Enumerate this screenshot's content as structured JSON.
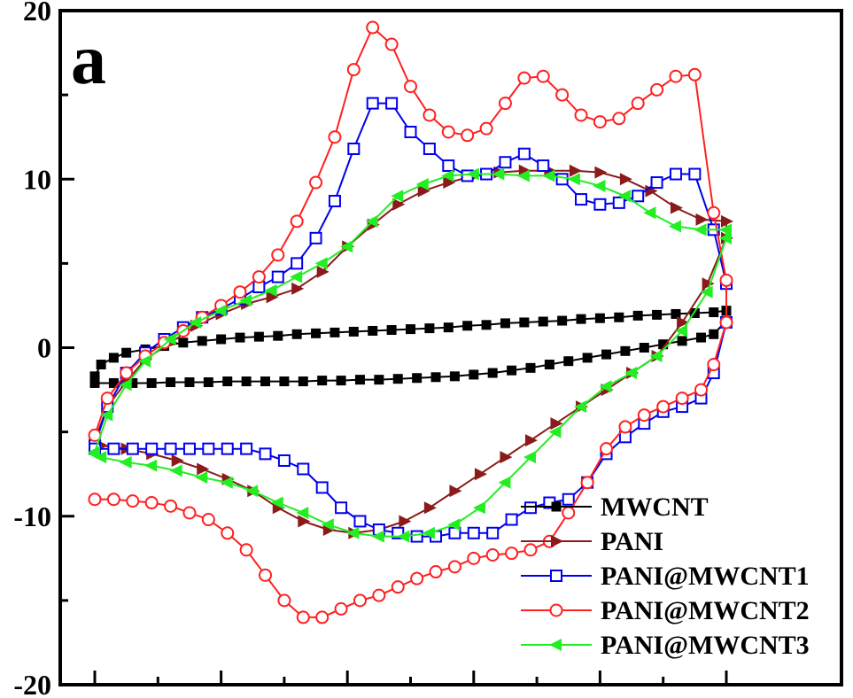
{
  "chart_data": {
    "type": "line",
    "title": "",
    "panel_label": "a",
    "xlabel": "",
    "ylabel": "",
    "xlim": [
      -0.2,
      0.8
    ],
    "ylim": [
      -20,
      20
    ],
    "y_ticks": [
      {
        "value": 20,
        "label": "20"
      },
      {
        "value": 10,
        "label": "10"
      },
      {
        "value": 0,
        "label": "0"
      },
      {
        "value": -10,
        "label": "-10"
      },
      {
        "value": -20,
        "label": "-20"
      }
    ],
    "x_ticks_major": [
      -0.2,
      0.0,
      0.2,
      0.4,
      0.6,
      0.8
    ],
    "x_ticks_minor": [
      -0.1,
      0.1,
      0.3,
      0.5,
      0.7
    ],
    "grid": false,
    "legend_position": "bottom-right",
    "series": [
      {
        "name": "MWCNT",
        "color": "#000000",
        "marker": "square-filled",
        "x": [
          -0.2,
          -0.19,
          -0.17,
          -0.15,
          -0.12,
          -0.09,
          -0.06,
          -0.03,
          0.0,
          0.03,
          0.06,
          0.09,
          0.12,
          0.15,
          0.18,
          0.21,
          0.24,
          0.27,
          0.3,
          0.33,
          0.36,
          0.39,
          0.42,
          0.45,
          0.48,
          0.51,
          0.54,
          0.57,
          0.6,
          0.63,
          0.66,
          0.69,
          0.72,
          0.75,
          0.78,
          0.8,
          0.8,
          0.78,
          0.76,
          0.73,
          0.7,
          0.67,
          0.64,
          0.61,
          0.58,
          0.55,
          0.52,
          0.49,
          0.46,
          0.43,
          0.4,
          0.37,
          0.34,
          0.31,
          0.28,
          0.25,
          0.22,
          0.19,
          0.16,
          0.13,
          0.1,
          0.07,
          0.04,
          0.01,
          -0.02,
          -0.05,
          -0.08,
          -0.11,
          -0.14,
          -0.17,
          -0.2
        ],
        "y": [
          -1.7,
          -1.0,
          -0.6,
          -0.3,
          -0.1,
          0.1,
          0.3,
          0.4,
          0.5,
          0.6,
          0.65,
          0.7,
          0.8,
          0.85,
          0.9,
          0.95,
          1.0,
          1.05,
          1.1,
          1.15,
          1.2,
          1.3,
          1.35,
          1.45,
          1.5,
          1.55,
          1.6,
          1.7,
          1.75,
          1.8,
          1.9,
          1.95,
          2.0,
          2.05,
          2.1,
          2.2,
          1.6,
          0.8,
          0.6,
          0.4,
          0.2,
          0.0,
          -0.2,
          -0.4,
          -0.6,
          -0.8,
          -1.0,
          -1.2,
          -1.35,
          -1.5,
          -1.6,
          -1.7,
          -1.75,
          -1.8,
          -1.85,
          -1.9,
          -1.9,
          -1.95,
          -1.95,
          -2.0,
          -2.0,
          -2.0,
          -2.0,
          -2.0,
          -2.05,
          -2.05,
          -2.05,
          -2.1,
          -2.1,
          -2.1,
          -2.1
        ]
      },
      {
        "name": "PANI",
        "color": "#8b1a1a",
        "marker": "triangle-right-filled",
        "x": [
          -0.2,
          -0.18,
          -0.15,
          -0.12,
          -0.08,
          -0.04,
          0.0,
          0.04,
          0.08,
          0.12,
          0.16,
          0.2,
          0.24,
          0.28,
          0.32,
          0.36,
          0.4,
          0.44,
          0.48,
          0.52,
          0.56,
          0.6,
          0.64,
          0.68,
          0.72,
          0.76,
          0.8,
          0.8,
          0.77,
          0.73,
          0.69,
          0.65,
          0.61,
          0.57,
          0.53,
          0.49,
          0.45,
          0.41,
          0.37,
          0.33,
          0.29,
          0.25,
          0.21,
          0.17,
          0.13,
          0.09,
          0.05,
          0.01,
          -0.03,
          -0.07,
          -0.11,
          -0.15,
          -0.19,
          -0.2
        ],
        "y": [
          -5.5,
          -3.5,
          -2.0,
          -0.7,
          0.3,
          1.3,
          2.0,
          2.6,
          3.0,
          3.5,
          4.5,
          6.0,
          7.3,
          8.5,
          9.3,
          9.8,
          10.2,
          10.4,
          10.5,
          10.5,
          10.5,
          10.4,
          10.0,
          9.3,
          8.3,
          7.6,
          7.5,
          6.5,
          3.8,
          1.5,
          -0.5,
          -1.5,
          -2.5,
          -3.5,
          -4.5,
          -5.5,
          -6.5,
          -7.5,
          -8.5,
          -9.5,
          -10.3,
          -10.8,
          -11.0,
          -10.8,
          -10.3,
          -9.5,
          -8.5,
          -7.8,
          -7.2,
          -6.7,
          -6.3,
          -6.0,
          -5.8,
          -5.7
        ]
      },
      {
        "name": "PANI@MWCNT1",
        "color": "#0000ee",
        "marker": "square-open",
        "x": [
          -0.2,
          -0.18,
          -0.15,
          -0.12,
          -0.09,
          -0.06,
          -0.03,
          0.0,
          0.03,
          0.06,
          0.09,
          0.12,
          0.15,
          0.18,
          0.21,
          0.24,
          0.27,
          0.3,
          0.33,
          0.36,
          0.39,
          0.42,
          0.45,
          0.48,
          0.51,
          0.54,
          0.57,
          0.6,
          0.63,
          0.66,
          0.69,
          0.72,
          0.75,
          0.78,
          0.8,
          0.8,
          0.78,
          0.76,
          0.73,
          0.7,
          0.67,
          0.64,
          0.61,
          0.58,
          0.55,
          0.52,
          0.49,
          0.46,
          0.43,
          0.4,
          0.37,
          0.34,
          0.31,
          0.28,
          0.25,
          0.22,
          0.19,
          0.16,
          0.13,
          0.1,
          0.07,
          0.04,
          0.01,
          -0.02,
          -0.05,
          -0.08,
          -0.11,
          -0.14,
          -0.17,
          -0.2
        ],
        "y": [
          -5.8,
          -3.5,
          -1.5,
          -0.3,
          0.5,
          1.2,
          1.8,
          2.3,
          2.9,
          3.6,
          4.2,
          5.0,
          6.5,
          8.7,
          11.8,
          14.5,
          14.5,
          12.8,
          11.8,
          10.8,
          10.2,
          10.3,
          11.0,
          11.5,
          10.8,
          10.0,
          8.8,
          8.5,
          8.6,
          9.0,
          9.8,
          10.3,
          10.3,
          7.0,
          3.8,
          1.5,
          -1.5,
          -3.0,
          -3.5,
          -3.8,
          -4.5,
          -5.3,
          -6.3,
          -8.0,
          -9.0,
          -9.2,
          -9.5,
          -10.2,
          -11.0,
          -11.0,
          -11.0,
          -11.2,
          -11.2,
          -11.0,
          -10.8,
          -10.3,
          -9.5,
          -8.3,
          -7.2,
          -6.7,
          -6.3,
          -6.0,
          -6.0,
          -6.0,
          -6.0,
          -6.0,
          -6.0,
          -6.0,
          -6.0,
          -6.0
        ]
      },
      {
        "name": "PANI@MWCNT2",
        "color": "#ff2020",
        "marker": "circle-open",
        "x": [
          -0.2,
          -0.18,
          -0.15,
          -0.12,
          -0.09,
          -0.06,
          -0.03,
          0.0,
          0.03,
          0.06,
          0.09,
          0.12,
          0.15,
          0.18,
          0.21,
          0.24,
          0.27,
          0.3,
          0.33,
          0.36,
          0.39,
          0.42,
          0.45,
          0.48,
          0.51,
          0.54,
          0.57,
          0.6,
          0.63,
          0.66,
          0.69,
          0.72,
          0.75,
          0.78,
          0.8,
          0.8,
          0.78,
          0.76,
          0.73,
          0.7,
          0.67,
          0.64,
          0.61,
          0.58,
          0.55,
          0.52,
          0.49,
          0.46,
          0.43,
          0.4,
          0.37,
          0.34,
          0.31,
          0.28,
          0.25,
          0.22,
          0.19,
          0.16,
          0.13,
          0.1,
          0.07,
          0.04,
          0.01,
          -0.02,
          -0.05,
          -0.08,
          -0.11,
          -0.14,
          -0.17,
          -0.2
        ],
        "y": [
          -5.2,
          -3.0,
          -1.5,
          -0.5,
          0.3,
          1.0,
          1.8,
          2.5,
          3.3,
          4.2,
          5.5,
          7.5,
          9.8,
          12.5,
          16.5,
          19.0,
          18.0,
          15.5,
          13.8,
          12.8,
          12.6,
          13.0,
          14.5,
          16.0,
          16.1,
          15.0,
          13.8,
          13.4,
          13.6,
          14.5,
          15.3,
          16.1,
          16.2,
          8.0,
          4.0,
          1.5,
          -1.0,
          -2.5,
          -3.0,
          -3.5,
          -4.0,
          -4.7,
          -6.0,
          -8.0,
          -9.8,
          -11.5,
          -12.0,
          -12.2,
          -12.3,
          -12.5,
          -13.0,
          -13.3,
          -13.7,
          -14.2,
          -14.7,
          -15.0,
          -15.5,
          -16.0,
          -16.0,
          -15.0,
          -13.5,
          -12.0,
          -11.0,
          -10.2,
          -9.8,
          -9.4,
          -9.2,
          -9.1,
          -9.0,
          -9.0
        ]
      },
      {
        "name": "PANI@MWCNT3",
        "color": "#22ee22",
        "marker": "triangle-left-filled",
        "x": [
          -0.2,
          -0.18,
          -0.15,
          -0.12,
          -0.08,
          -0.04,
          0.0,
          0.04,
          0.08,
          0.12,
          0.16,
          0.2,
          0.24,
          0.28,
          0.32,
          0.36,
          0.4,
          0.44,
          0.48,
          0.52,
          0.56,
          0.6,
          0.64,
          0.68,
          0.72,
          0.76,
          0.8,
          0.8,
          0.77,
          0.73,
          0.69,
          0.65,
          0.61,
          0.57,
          0.53,
          0.49,
          0.45,
          0.41,
          0.37,
          0.33,
          0.29,
          0.25,
          0.21,
          0.17,
          0.13,
          0.09,
          0.05,
          0.01,
          -0.03,
          -0.07,
          -0.11,
          -0.15,
          -0.19,
          -0.2
        ],
        "y": [
          -6.2,
          -4.0,
          -2.2,
          -0.8,
          0.5,
          1.5,
          2.2,
          2.8,
          3.4,
          4.2,
          5.0,
          6.0,
          7.5,
          9.0,
          9.7,
          10.2,
          10.3,
          10.3,
          10.2,
          10.2,
          10.0,
          9.6,
          9.0,
          8.0,
          7.2,
          7.0,
          7.0,
          6.5,
          3.3,
          1.0,
          -0.5,
          -1.5,
          -2.3,
          -3.5,
          -5.0,
          -6.5,
          -8.0,
          -9.5,
          -10.5,
          -11.0,
          -11.2,
          -11.2,
          -11.0,
          -10.5,
          -9.8,
          -9.2,
          -8.5,
          -8.0,
          -7.7,
          -7.3,
          -7.0,
          -6.8,
          -6.5,
          -6.3
        ]
      }
    ]
  }
}
